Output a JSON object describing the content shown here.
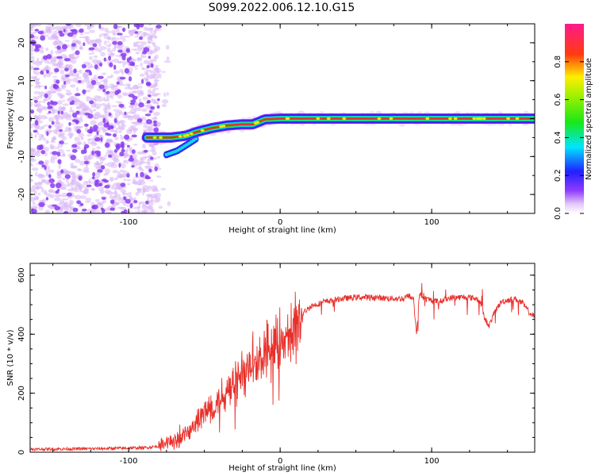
{
  "title": "S099.2022.006.12.10.G15",
  "colors": {
    "snr_line": "#e8302a",
    "ridge": "#e8302a",
    "scatter": "#8a3df0",
    "axis": "#000000"
  },
  "chart_data": [
    {
      "type": "heatmap",
      "title": "S099.2022.006.12.10.G15",
      "xlabel": "Height of straight line (km)",
      "ylabel": "Frequency (Hz)",
      "xlim": [
        -165,
        168
      ],
      "ylim": [
        -25,
        25
      ],
      "x_ticks": [
        -100,
        0,
        100
      ],
      "y_ticks": [
        -20,
        -10,
        0,
        10,
        20
      ],
      "x_tick_labels": [
        "-100",
        "0",
        "100"
      ],
      "y_tick_labels": [
        "-20",
        "-10",
        "0",
        "10",
        "20"
      ],
      "noise_region_x": [
        -165,
        -80
      ],
      "ridge": {
        "x": [
          -88,
          -80,
          -72,
          -62,
          -55,
          -45,
          -35,
          -25,
          -18,
          -10,
          0,
          10,
          168
        ],
        "y": [
          -5,
          -5,
          -5,
          -4.5,
          -3.5,
          -2.5,
          -1.8,
          -1.5,
          -1.5,
          -0.2,
          0,
          0,
          0
        ]
      },
      "secondary_ridge": {
        "x": [
          -75,
          -68,
          -60,
          -55
        ],
        "y": [
          -9.5,
          -8.5,
          -6.5,
          -5.2
        ]
      },
      "colorbar": {
        "label": "Normalized spectral amplitude",
        "range": [
          0,
          1
        ],
        "ticks": [
          0.0,
          0.2,
          0.4,
          0.6,
          0.8
        ],
        "tick_labels": [
          "0.0",
          "0.2",
          "0.4",
          "0.6",
          "0.8"
        ],
        "colormap": "hsv-rainbow (white-purple-blue-cyan-green-yellow-red-pink)"
      }
    },
    {
      "type": "line",
      "xlabel": "Height of straight line (km)",
      "ylabel": "SNR (10 * v/v)",
      "xlim": [
        -165,
        168
      ],
      "ylim": [
        0,
        640
      ],
      "x_ticks": [
        -100,
        0,
        100
      ],
      "y_ticks": [
        0,
        200,
        400,
        600
      ],
      "x_tick_labels": [
        "-100",
        "0",
        "100"
      ],
      "y_tick_labels": [
        "0",
        "200",
        "400",
        "600"
      ],
      "series": [
        {
          "x": [
            -165,
            -120,
            -90,
            -80,
            -70,
            -60,
            -55,
            -50,
            -45,
            -40,
            -35,
            -30,
            -25,
            -20,
            -15,
            -10,
            -5,
            0,
            5,
            10,
            15,
            20,
            30,
            40,
            50,
            60,
            70,
            80,
            85,
            88,
            90,
            92,
            95,
            100,
            105,
            110,
            115,
            120,
            125,
            130,
            133,
            135,
            138,
            142,
            146,
            150,
            155,
            160,
            165,
            168
          ],
          "y": [
            10,
            12,
            15,
            20,
            40,
            70,
            100,
            130,
            150,
            180,
            210,
            240,
            260,
            280,
            300,
            320,
            340,
            360,
            390,
            430,
            470,
            495,
            510,
            520,
            525,
            525,
            522,
            520,
            530,
            520,
            400,
            540,
            520,
            515,
            510,
            520,
            525,
            525,
            525,
            520,
            500,
            450,
            430,
            480,
            510,
            515,
            520,
            505,
            470,
            460
          ]
        }
      ]
    }
  ]
}
